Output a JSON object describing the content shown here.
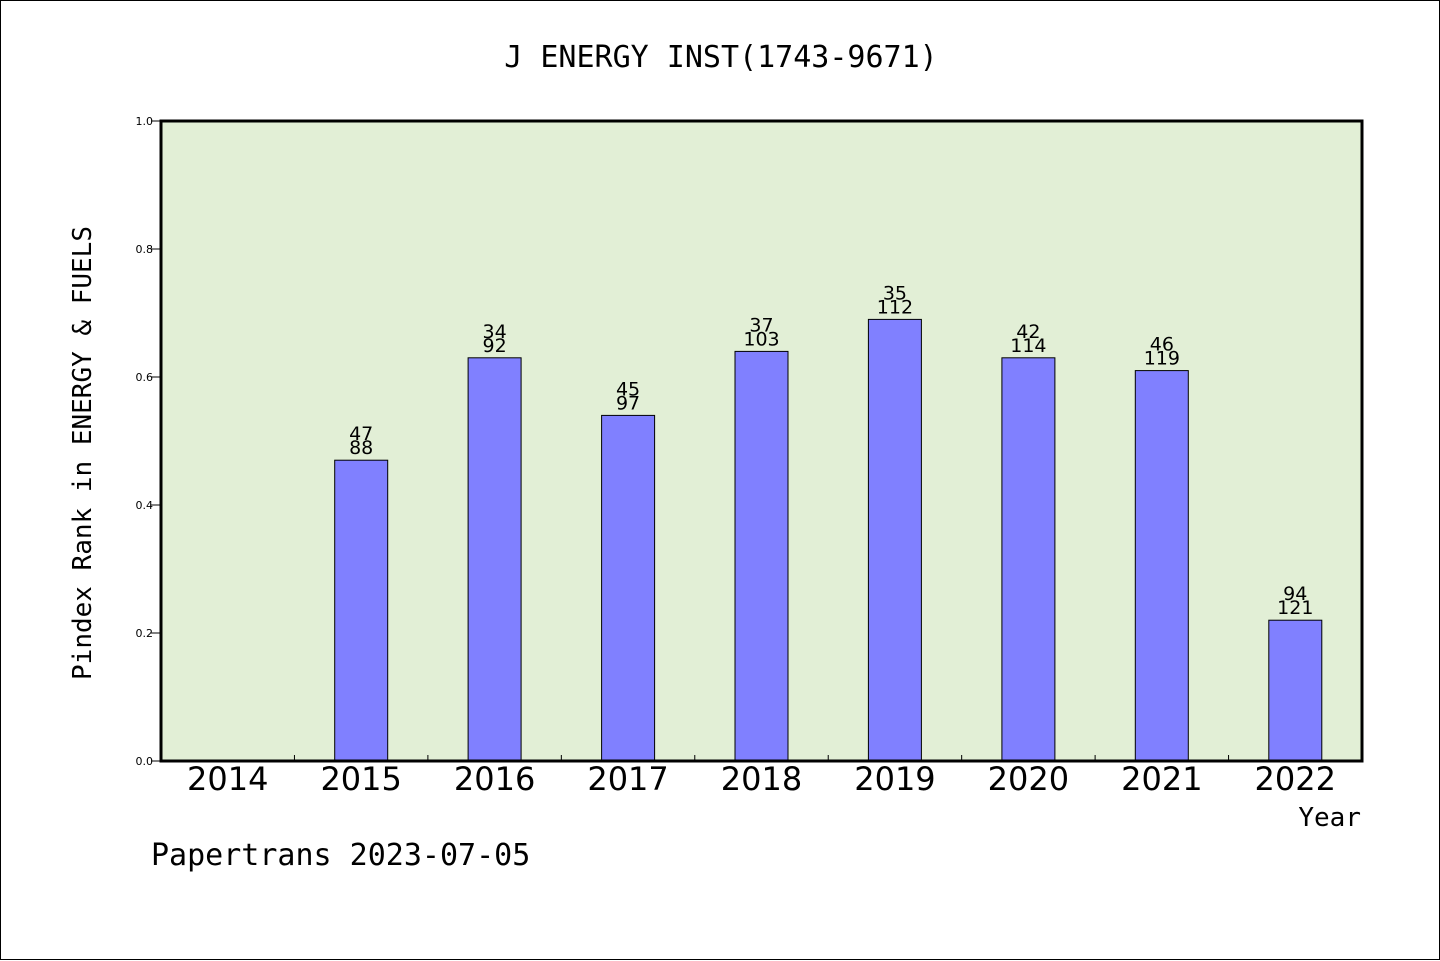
{
  "chart_data": {
    "type": "bar",
    "title": "J ENERGY INST(1743-9671)",
    "xlabel": "Year",
    "ylabel": "Pindex Rank in ENERGY & FUELS",
    "ylim": [
      0,
      1.0
    ],
    "yticks": [
      "0.0",
      "0.2",
      "0.4",
      "0.6",
      "0.8",
      "1.0"
    ],
    "categories": [
      "2014",
      "2015",
      "2016",
      "2017",
      "2018",
      "2019",
      "2020",
      "2021",
      "2022"
    ],
    "values": [
      null,
      0.47,
      0.63,
      0.54,
      0.64,
      0.69,
      0.63,
      0.61,
      0.22
    ],
    "labels_top": [
      "",
      "47",
      "34",
      "45",
      "37",
      "35",
      "42",
      "46",
      "94"
    ],
    "labels_bottom": [
      "",
      "88",
      "92",
      "97",
      "103",
      "112",
      "114",
      "119",
      "121"
    ],
    "grid": false,
    "colors": {
      "plot_bg": "#e2efd6",
      "bar": "#8080ff",
      "bar_edge": "#000000"
    }
  },
  "footer": "Papertrans 2023-07-05"
}
